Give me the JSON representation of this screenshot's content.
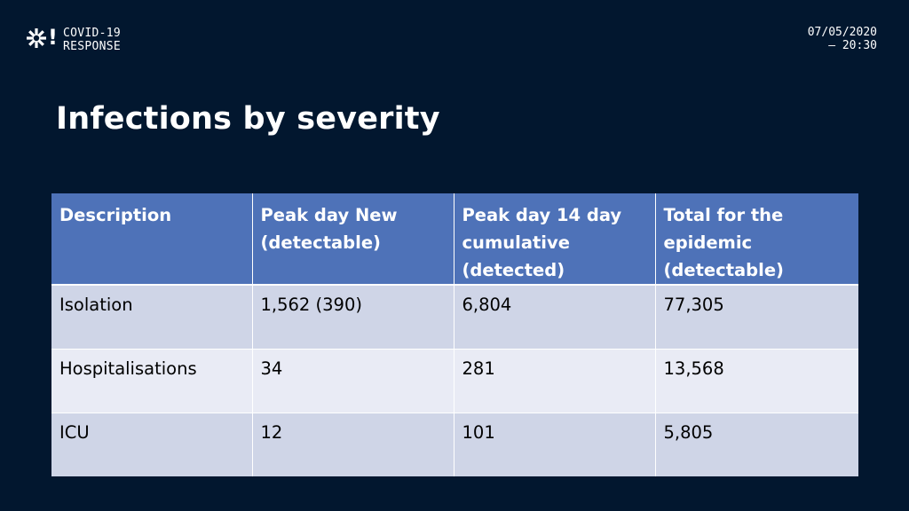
{
  "logo": {
    "mark": "!",
    "line1": "COVID-19",
    "line2": "RESPONSE"
  },
  "stamp": {
    "date": "07/05/2020",
    "time": "— 20:30"
  },
  "title": "Infections by severity",
  "table": {
    "headers": [
      "Description",
      "Peak day New (detectable)",
      "Peak day 14 day cumulative (detected)",
      "Total for the epidemic (detectable)"
    ],
    "rows": [
      [
        "Isolation",
        "1,562 (390)",
        "6,804",
        "77,305"
      ],
      [
        "Hospitalisations",
        "34",
        "281",
        "13,568"
      ],
      [
        "ICU",
        "12",
        "101",
        "5,805"
      ]
    ]
  },
  "colors": {
    "background": "#02172f",
    "header": "#4e72b8",
    "row_odd": "#cfd5e7",
    "row_even": "#e9ebf5"
  }
}
